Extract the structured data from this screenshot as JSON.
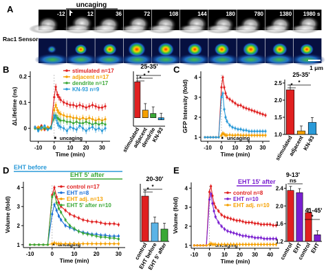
{
  "panel_a": {
    "letter": "A",
    "header": "uncaging",
    "row_label": "Rac1 Sensor",
    "times": [
      "-12",
      "12",
      "36",
      "72",
      "108",
      "144",
      "180",
      "780",
      "1380",
      "1980 s"
    ],
    "scalebar_label": "1 μm"
  },
  "colors": {
    "red": "#e02020",
    "orange": "#f5a000",
    "green": "#3aa836",
    "blue": "#2a9ad8",
    "purple": "#8a2be2",
    "cyan_bar": "#5ab3e6",
    "bright_blue": "#1a6fd8",
    "dark_purple": "#7a1fd0"
  },
  "chart_data": [
    {
      "id": "B",
      "type": "line",
      "letter": "B",
      "ylabel": "ΔLifetime (ns)",
      "xlabel": "Time (min)",
      "annotation": "uncaging",
      "xlim": [
        -15,
        35
      ],
      "ylim": [
        -0.05,
        0.22
      ],
      "xticks": [
        "-10",
        "0",
        "10",
        "20",
        "30"
      ],
      "yticks": [
        "0",
        "0.1",
        "0.2"
      ],
      "series": [
        {
          "name": "stimulated n=17",
          "color": "#e02020",
          "x": [
            -12,
            -10,
            -8,
            -6,
            -4,
            -2,
            0,
            1,
            2,
            3,
            4,
            6,
            8,
            10,
            12,
            14,
            16,
            18,
            20,
            22,
            24,
            26,
            28,
            30,
            32
          ],
          "y": [
            0.005,
            0.0,
            0.01,
            -0.005,
            0.0,
            0.005,
            0.12,
            0.16,
            0.13,
            0.12,
            0.11,
            0.1,
            0.095,
            0.09,
            0.09,
            0.085,
            0.09,
            0.085,
            0.08,
            0.085,
            0.09,
            0.085,
            0.08,
            0.08,
            0.085
          ]
        },
        {
          "name": "adjacent n=17",
          "color": "#f5a000",
          "x": [
            -12,
            -10,
            -8,
            -6,
            -4,
            -2,
            0,
            1,
            2,
            3,
            4,
            6,
            8,
            10,
            12,
            14,
            16,
            18,
            20,
            22,
            24,
            26,
            28,
            30,
            32
          ],
          "y": [
            0.0,
            0.005,
            -0.005,
            0.0,
            0.005,
            0.0,
            0.07,
            0.09,
            0.07,
            0.06,
            0.055,
            0.05,
            0.045,
            0.045,
            0.04,
            0.04,
            0.035,
            0.04,
            0.035,
            0.04,
            0.035,
            0.03,
            0.035,
            0.03,
            0.035
          ]
        },
        {
          "name": "dendrite n=17",
          "color": "#3aa836",
          "x": [
            -12,
            -10,
            -8,
            -6,
            -4,
            -2,
            0,
            1,
            2,
            3,
            4,
            6,
            8,
            10,
            12,
            14,
            16,
            18,
            20,
            22,
            24,
            26,
            28,
            30,
            32
          ],
          "y": [
            0.0,
            -0.005,
            0.005,
            0.0,
            -0.005,
            0.005,
            0.04,
            0.05,
            0.04,
            0.035,
            0.03,
            0.03,
            0.025,
            0.025,
            0.02,
            0.025,
            0.02,
            0.02,
            0.025,
            0.02,
            0.015,
            0.02,
            0.015,
            0.02,
            0.015
          ]
        },
        {
          "name": "KN-93 n=9",
          "color": "#2a9ad8",
          "x": [
            -12,
            -10,
            -8,
            -6,
            -4,
            -2,
            0,
            1,
            2,
            3,
            4,
            6,
            8,
            10,
            12,
            14,
            16,
            18,
            20,
            22,
            24,
            26,
            28,
            30,
            32
          ],
          "y": [
            0.005,
            -0.01,
            0.0,
            0.01,
            -0.005,
            0.0,
            0.05,
            0.04,
            0.02,
            0.01,
            0.005,
            0.0,
            -0.01,
            0.005,
            0.0,
            -0.005,
            0.01,
            0.0,
            -0.01,
            0.0,
            0.005,
            -0.005,
            0.0,
            -0.01,
            0.0
          ]
        }
      ]
    },
    {
      "id": "Bbar",
      "type": "bar",
      "title": "25-35'",
      "categories": [
        "stimulated",
        "adjacent",
        "dendrite",
        "KN-93"
      ],
      "values": [
        0.085,
        0.018,
        0.01,
        -0.005
      ],
      "colors": [
        "#e02020",
        "#f5a000",
        "#3aa836",
        "#2a9ad8"
      ],
      "ylim": [
        -0.02,
        0.11
      ],
      "significance": [
        "*",
        "*",
        "*"
      ]
    },
    {
      "id": "C",
      "type": "line",
      "letter": "C",
      "ylabel": "GFP Intensity (fold)",
      "xlabel": "Time (min)",
      "annotation": "uncaging",
      "xlim": [
        -15,
        35
      ],
      "ylim": [
        0.8,
        4.3
      ],
      "xticks": [
        "-10",
        "0",
        "10",
        "20",
        "30"
      ],
      "yticks": [
        "1",
        "2",
        "3",
        "4"
      ],
      "series": [
        {
          "name": "stimulated",
          "color": "#e02020",
          "x": [
            -12,
            -10,
            -8,
            -6,
            -4,
            -2,
            0,
            1,
            2,
            3,
            4,
            6,
            8,
            10,
            12,
            14,
            16,
            18,
            20,
            22,
            24,
            26,
            28,
            30,
            32
          ],
          "y": [
            1.0,
            1.0,
            1.0,
            1.0,
            1.0,
            1.0,
            3.5,
            4.0,
            3.5,
            3.2,
            3.0,
            2.9,
            2.8,
            2.7,
            2.6,
            2.6,
            2.5,
            2.45,
            2.4,
            2.35,
            2.3,
            2.25,
            2.2,
            2.15,
            2.1
          ]
        },
        {
          "name": "adjacent",
          "color": "#f5a000",
          "x": [
            -12,
            -10,
            -8,
            -6,
            -4,
            -2,
            0,
            1,
            2,
            3,
            4,
            6,
            8,
            10,
            12,
            14,
            16,
            18,
            20,
            22,
            24,
            26,
            28,
            30,
            32
          ],
          "y": [
            1.0,
            1.0,
            1.0,
            1.0,
            1.0,
            1.0,
            1.1,
            1.2,
            1.15,
            1.1,
            1.1,
            1.12,
            1.1,
            1.1,
            1.12,
            1.1,
            1.1,
            1.1,
            1.1,
            1.1,
            1.1,
            1.1,
            1.1,
            1.1,
            1.1
          ]
        },
        {
          "name": "KN-93",
          "color": "#2a9ad8",
          "x": [
            -12,
            -10,
            -8,
            -6,
            -4,
            -2,
            0,
            1,
            2,
            3,
            4,
            6,
            8,
            10,
            12,
            14,
            16,
            18,
            20,
            22,
            24,
            26,
            28,
            30,
            32
          ],
          "y": [
            1.0,
            1.0,
            1.0,
            1.0,
            1.0,
            1.0,
            3.0,
            3.2,
            2.4,
            2.0,
            1.8,
            1.6,
            1.5,
            1.45,
            1.4,
            1.4,
            1.35,
            1.35,
            1.3,
            1.3,
            1.3,
            1.3,
            1.3,
            1.3,
            1.3
          ]
        }
      ]
    },
    {
      "id": "Cbar",
      "type": "bar",
      "title": "25-35'",
      "categories": [
        "stimulated",
        "adjacent",
        "KN-93"
      ],
      "values": [
        2.3,
        1.1,
        1.35
      ],
      "colors": [
        "#e02020",
        "#f5a000",
        "#2a9ad8"
      ],
      "ylim": [
        1.0,
        2.6
      ],
      "yticks": [
        "1.0",
        "1.5",
        "2.0",
        "2.5"
      ],
      "significance": [
        "*",
        "*"
      ]
    },
    {
      "id": "D",
      "type": "line",
      "letter": "D",
      "ylabel": "Volume (fold)",
      "xlabel": "Time (min)",
      "annotation": "uncaging",
      "header_1": "EHT before",
      "header_2": "EHT 5' after",
      "xlim": [
        -13,
        33
      ],
      "ylim": [
        0.85,
        4.3
      ],
      "xticks": [
        "-10",
        "0",
        "10",
        "20",
        "30"
      ],
      "yticks": [
        "1",
        "2",
        "3",
        "4"
      ],
      "series": [
        {
          "name": "control n=17",
          "color": "#e02020",
          "x": [
            -10,
            -8,
            -6,
            -4,
            -2,
            0,
            1,
            2,
            3,
            4,
            6,
            8,
            10,
            12,
            14,
            16,
            18,
            20,
            22,
            24,
            26,
            28,
            30
          ],
          "y": [
            1.0,
            1.0,
            1.0,
            1.0,
            1.0,
            3.6,
            4.0,
            3.5,
            3.2,
            3.0,
            2.8,
            2.6,
            2.5,
            2.4,
            2.3,
            2.25,
            2.2,
            2.2,
            2.15,
            2.1,
            2.1,
            2.1,
            2.05
          ]
        },
        {
          "name": "EHT n=8",
          "color": "#1a6fd8",
          "x": [
            -10,
            -8,
            -6,
            -4,
            -2,
            0,
            1,
            2,
            3,
            4,
            6,
            8,
            10,
            12,
            14,
            16,
            18,
            20,
            22,
            24,
            26,
            28,
            30
          ],
          "y": [
            1.0,
            1.0,
            1.0,
            1.0,
            1.0,
            2.6,
            3.1,
            2.8,
            2.5,
            2.3,
            2.0,
            1.9,
            1.8,
            1.7,
            1.65,
            1.6,
            1.55,
            1.55,
            1.5,
            1.5,
            1.45,
            1.45,
            1.45
          ]
        },
        {
          "name": "EHT adj. n=13",
          "color": "#f5a000",
          "x": [
            -10,
            -8,
            -6,
            -4,
            -2,
            0,
            1,
            2,
            3,
            4,
            6,
            8,
            10,
            12,
            14,
            16,
            18,
            20,
            22,
            24,
            26,
            28,
            30
          ],
          "y": [
            1.0,
            1.0,
            1.0,
            1.0,
            1.0,
            1.05,
            1.1,
            1.05,
            1.05,
            1.05,
            1.05,
            1.05,
            1.05,
            1.05,
            1.05,
            1.05,
            1.05,
            1.05,
            1.05,
            1.05,
            1.05,
            1.05,
            1.05
          ]
        },
        {
          "name": "EHT 5' after n=10",
          "color": "#3aa836",
          "x": [
            -10,
            -8,
            -6,
            -4,
            -2,
            0,
            1,
            2,
            3,
            4,
            6,
            8,
            10,
            12,
            14,
            16,
            18,
            20,
            22,
            24,
            26,
            28,
            30
          ],
          "y": [
            1.0,
            1.0,
            1.0,
            1.0,
            1.0,
            3.5,
            3.7,
            3.2,
            2.9,
            2.7,
            2.3,
            2.0,
            1.85,
            1.7,
            1.6,
            1.55,
            1.5,
            1.45,
            1.4,
            1.4,
            1.35,
            1.35,
            1.3
          ]
        }
      ]
    },
    {
      "id": "Dbar",
      "type": "bar",
      "title": "20-30'",
      "categories": [
        "control",
        "EHT before",
        "EHT 5' after"
      ],
      "values": [
        2.1,
        1.45,
        1.3
      ],
      "colors": [
        "#e02020",
        "#5ab3e6",
        "#3aa836"
      ],
      "ylim": [
        1.0,
        2.4
      ],
      "significance": [
        "*",
        "*"
      ]
    },
    {
      "id": "E",
      "type": "line",
      "letter": "E",
      "ylabel": "Volume (fold)",
      "xlabel": "Time (min)",
      "annotation": "uncaging",
      "header_1": "EHT 15' after",
      "xlim": [
        -12,
        46
      ],
      "ylim": [
        0.85,
        4.3
      ],
      "xticks": [
        "-10",
        "0",
        "10",
        "20",
        "30",
        "40"
      ],
      "yticks": [
        "1",
        "2",
        "3",
        "4"
      ],
      "series": [
        {
          "name": "control n=8",
          "color": "#e02020",
          "x": [
            -10,
            -8,
            -6,
            -4,
            -2,
            0,
            1,
            2,
            3,
            4,
            6,
            8,
            10,
            12,
            14,
            16,
            18,
            20,
            22,
            24,
            26,
            28,
            30,
            32,
            34,
            36,
            38,
            40,
            42,
            44
          ],
          "y": [
            1.0,
            1.0,
            1.0,
            1.0,
            1.0,
            3.8,
            4.1,
            3.6,
            3.2,
            3.0,
            2.8,
            2.6,
            2.5,
            2.45,
            2.4,
            2.35,
            2.3,
            2.3,
            2.25,
            2.2,
            2.2,
            2.2,
            2.15,
            2.15,
            2.1,
            2.1,
            2.1,
            2.1,
            2.05,
            2.05
          ]
        },
        {
          "name": "EHT n=10",
          "color": "#7a1fd0",
          "x": [
            -10,
            -8,
            -6,
            -4,
            -2,
            0,
            1,
            2,
            3,
            4,
            6,
            8,
            10,
            12,
            14,
            16,
            18,
            20,
            22,
            24,
            26,
            28,
            30,
            32,
            34,
            36,
            38,
            40,
            42,
            44
          ],
          "y": [
            1.0,
            1.0,
            1.0,
            1.0,
            1.0,
            3.4,
            3.7,
            3.2,
            2.8,
            2.5,
            2.2,
            2.0,
            1.85,
            1.75,
            1.7,
            1.65,
            1.6,
            1.55,
            1.5,
            1.5,
            1.45,
            1.45,
            1.4,
            1.4,
            1.4,
            1.35,
            1.35,
            1.35,
            1.35,
            1.35
          ]
        },
        {
          "name": "EHT adj. n=10",
          "color": "#f5a000",
          "x": [
            -10,
            -8,
            -6,
            -4,
            -2,
            0,
            1,
            2,
            3,
            4,
            6,
            8,
            10,
            12,
            14,
            16,
            18,
            20,
            22,
            24,
            26,
            28,
            30,
            32,
            34,
            36,
            38,
            40,
            42,
            44
          ],
          "y": [
            1.0,
            1.0,
            1.0,
            1.0,
            1.0,
            1.05,
            1.1,
            1.05,
            1.05,
            1.05,
            1.05,
            1.05,
            1.05,
            1.05,
            1.05,
            1.05,
            1.05,
            1.05,
            1.05,
            1.05,
            1.05,
            1.05,
            1.05,
            1.05,
            1.05,
            1.05,
            1.05,
            1.05,
            1.05,
            1.05
          ]
        }
      ]
    },
    {
      "id": "Ebar",
      "type": "bar",
      "group_labels": [
        "9-13'",
        "41-45'"
      ],
      "ns_label": "ns",
      "categories": [
        "control",
        "EHT",
        "control",
        "EHT"
      ],
      "values": [
        2.35,
        2.3,
        1.85,
        1.35
      ],
      "colors": [
        "#e02020",
        "#7a1fd0",
        "#e02020",
        "#7a1fd0"
      ],
      "ylim": [
        1.2,
        2.5
      ],
      "yticks": [
        "1.2",
        "1.6",
        "2.0",
        "2.4"
      ],
      "significance": [
        "*"
      ]
    }
  ]
}
